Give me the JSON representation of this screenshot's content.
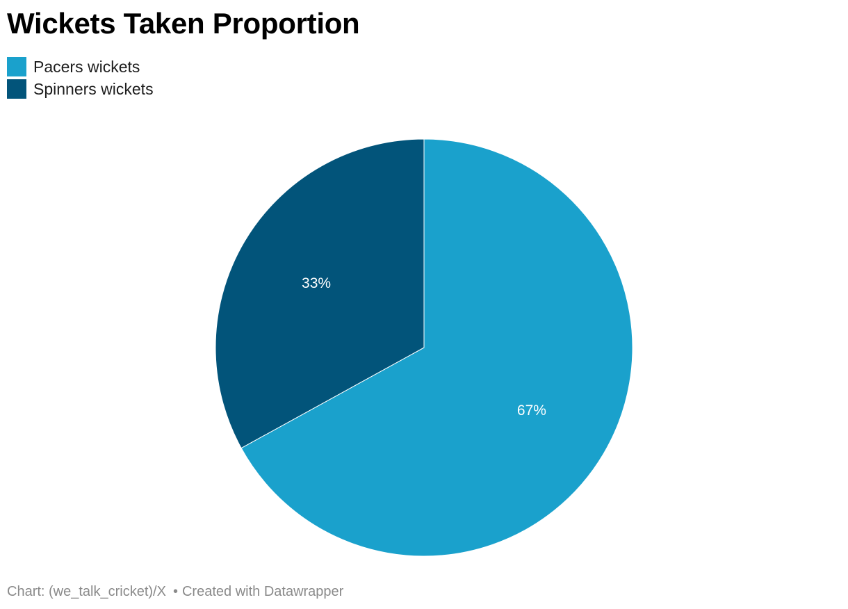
{
  "title": "Wickets Taken Proportion",
  "footer": {
    "source": "Chart: (we_talk_cricket)/X",
    "separator": "•",
    "credit": "Created with Datawrapper"
  },
  "chart_data": {
    "type": "pie",
    "title": "Wickets Taken Proportion",
    "legend_position": "top-left",
    "slices": [
      {
        "name": "Pacers wickets",
        "value": 67,
        "label": "67%",
        "color": "#1aa1cc"
      },
      {
        "name": "Spinners wickets",
        "value": 33,
        "label": "33%",
        "color": "#02547a"
      }
    ]
  }
}
